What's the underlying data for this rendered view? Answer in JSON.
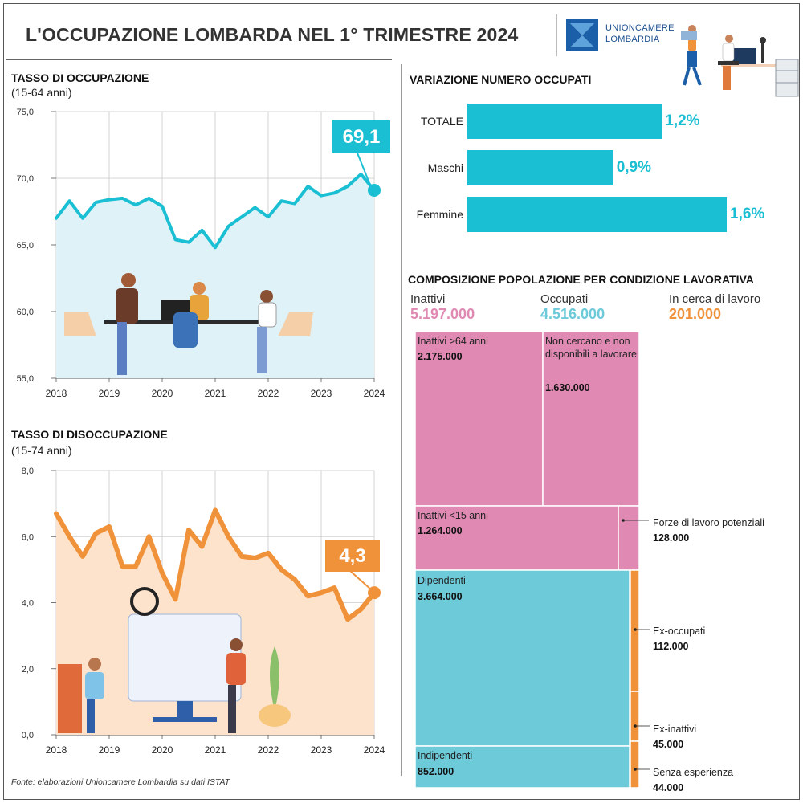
{
  "title": "L'OCCUPAZIONE LOMBARDA NEL 1° TRIMESTRE 2024",
  "logo": {
    "line1": "UNIONCAMERE",
    "line2": "LOMBARDIA"
  },
  "colors": {
    "teal": "#1abfd3",
    "orange": "#f0923a",
    "pink": "#e08ab3",
    "lightblue": "#6ccad9"
  },
  "employment": {
    "title": "TASSO DI OCCUPAZIONE",
    "subtitle": "(15-64 anni)",
    "callout": "69,1",
    "yticks": [
      "75,0",
      "70,0",
      "65,0",
      "60,0",
      "55,0"
    ],
    "xticks": [
      "2018",
      "2019",
      "2020",
      "2021",
      "2022",
      "2023",
      "2024"
    ]
  },
  "unemployment": {
    "title": "TASSO DI DISOCCUPAZIONE",
    "subtitle": "(15-74 anni)",
    "callout": "4,3",
    "yticks": [
      "8,0",
      "6,0",
      "4,0",
      "2,0",
      "0,0"
    ],
    "xticks": [
      "2018",
      "2019",
      "2020",
      "2021",
      "2022",
      "2023",
      "2024"
    ]
  },
  "variation": {
    "title": "VARIAZIONE NUMERO OCCUPATI",
    "items": [
      {
        "label": "TOTALE",
        "value": 1.2,
        "display": "1,2%"
      },
      {
        "label": "Maschi",
        "value": 0.9,
        "display": "0,9%"
      },
      {
        "label": "Femmine",
        "value": 1.6,
        "display": "1,6%"
      }
    ]
  },
  "composition": {
    "title": "COMPOSIZIONE POPOLAZIONE PER CONDIZIONE LAVORATIVA",
    "legend": [
      {
        "name": "Inattivi",
        "value": "5.197.000"
      },
      {
        "name": "Occupati",
        "value": "4.516.000"
      },
      {
        "name": "In cerca di lavoro",
        "value": "201.000"
      }
    ],
    "cells": {
      "inattivi64": {
        "label": "Inattivi >64 anni",
        "value": "2.175.000"
      },
      "noncercano": {
        "label": "Non cercano e non disponibili a lavorare",
        "value": "1.630.000"
      },
      "inattivi15": {
        "label": "Inattivi <15 anni",
        "value": "1.264.000"
      },
      "forze": {
        "label": "Forze di lavoro potenziali",
        "value": "128.000"
      },
      "dipendenti": {
        "label": "Dipendenti",
        "value": "3.664.000"
      },
      "indipendenti": {
        "label": "Indipendenti",
        "value": "852.000"
      },
      "exoccupati": {
        "label": "Ex-occupati",
        "value": "112.000"
      },
      "exinattivi": {
        "label": "Ex-inattivi",
        "value": "45.000"
      },
      "senzaesperienza": {
        "label": "Senza esperienza",
        "value": "44.000"
      }
    }
  },
  "source": "Fonte: elaborazioni Unioncamere Lombardia su dati ISTAT",
  "chart_data": [
    {
      "type": "area",
      "title": "TASSO DI OCCUPAZIONE",
      "subtitle": "(15-64 anni)",
      "x_start": "2018 T1",
      "x": [
        "2018 T1",
        "2018 T2",
        "2018 T3",
        "2018 T4",
        "2019 T1",
        "2019 T2",
        "2019 T3",
        "2019 T4",
        "2020 T1",
        "2020 T2",
        "2020 T3",
        "2020 T4",
        "2021 T1",
        "2021 T2",
        "2021 T3",
        "2021 T4",
        "2022 T1",
        "2022 T2",
        "2022 T3",
        "2022 T4",
        "2023 T1",
        "2023 T2",
        "2023 T3",
        "2023 T4",
        "2024 T1"
      ],
      "values": [
        67.0,
        68.3,
        67.0,
        68.2,
        68.4,
        68.5,
        68.0,
        68.5,
        67.9,
        65.4,
        65.2,
        66.1,
        64.8,
        66.4,
        67.1,
        67.8,
        67.1,
        68.3,
        68.1,
        69.4,
        68.7,
        68.9,
        69.4,
        70.3,
        69.1
      ],
      "ylim": [
        55,
        75
      ],
      "grid": true,
      "callout": "69,1"
    },
    {
      "type": "area",
      "title": "TASSO DI DISOCCUPAZIONE",
      "subtitle": "(15-74 anni)",
      "x_start": "2018 T1",
      "x": [
        "2018 T1",
        "2018 T2",
        "2018 T3",
        "2018 T4",
        "2019 T1",
        "2019 T2",
        "2019 T3",
        "2019 T4",
        "2020 T1",
        "2020 T2",
        "2020 T3",
        "2020 T4",
        "2021 T1",
        "2021 T2",
        "2021 T3",
        "2021 T4",
        "2022 T1",
        "2022 T2",
        "2022 T3",
        "2022 T4",
        "2023 T1",
        "2023 T2",
        "2023 T3",
        "2023 T4",
        "2024 T1"
      ],
      "values": [
        6.7,
        6.0,
        5.4,
        6.1,
        6.3,
        5.1,
        5.1,
        6.0,
        4.9,
        4.1,
        6.2,
        5.7,
        6.8,
        6.0,
        5.4,
        5.35,
        5.5,
        5.0,
        4.7,
        4.2,
        4.3,
        4.45,
        3.5,
        3.8,
        4.3
      ],
      "ylim": [
        0,
        8
      ],
      "grid": true,
      "callout": "4,3"
    },
    {
      "type": "bar",
      "orientation": "horizontal",
      "title": "VARIAZIONE NUMERO OCCUPATI",
      "categories": [
        "TOTALE",
        "Maschi",
        "Femmine"
      ],
      "values": [
        1.2,
        0.9,
        1.6
      ],
      "unit": "%"
    },
    {
      "type": "treemap",
      "title": "COMPOSIZIONE POPOLAZIONE PER CONDIZIONE LAVORATIVA",
      "groups": [
        {
          "name": "Inattivi",
          "total": 5197000,
          "children": [
            {
              "name": "Inattivi >64 anni",
              "value": 2175000
            },
            {
              "name": "Non cercano e non disponibili a lavorare",
              "value": 1630000
            },
            {
              "name": "Inattivi <15 anni",
              "value": 1264000
            },
            {
              "name": "Forze di lavoro potenziali",
              "value": 128000
            }
          ]
        },
        {
          "name": "Occupati",
          "total": 4516000,
          "children": [
            {
              "name": "Dipendenti",
              "value": 3664000
            },
            {
              "name": "Indipendenti",
              "value": 852000
            }
          ]
        },
        {
          "name": "In cerca di lavoro",
          "total": 201000,
          "children": [
            {
              "name": "Ex-occupati",
              "value": 112000
            },
            {
              "name": "Ex-inattivi",
              "value": 45000
            },
            {
              "name": "Senza esperienza",
              "value": 44000
            }
          ]
        }
      ]
    }
  ]
}
